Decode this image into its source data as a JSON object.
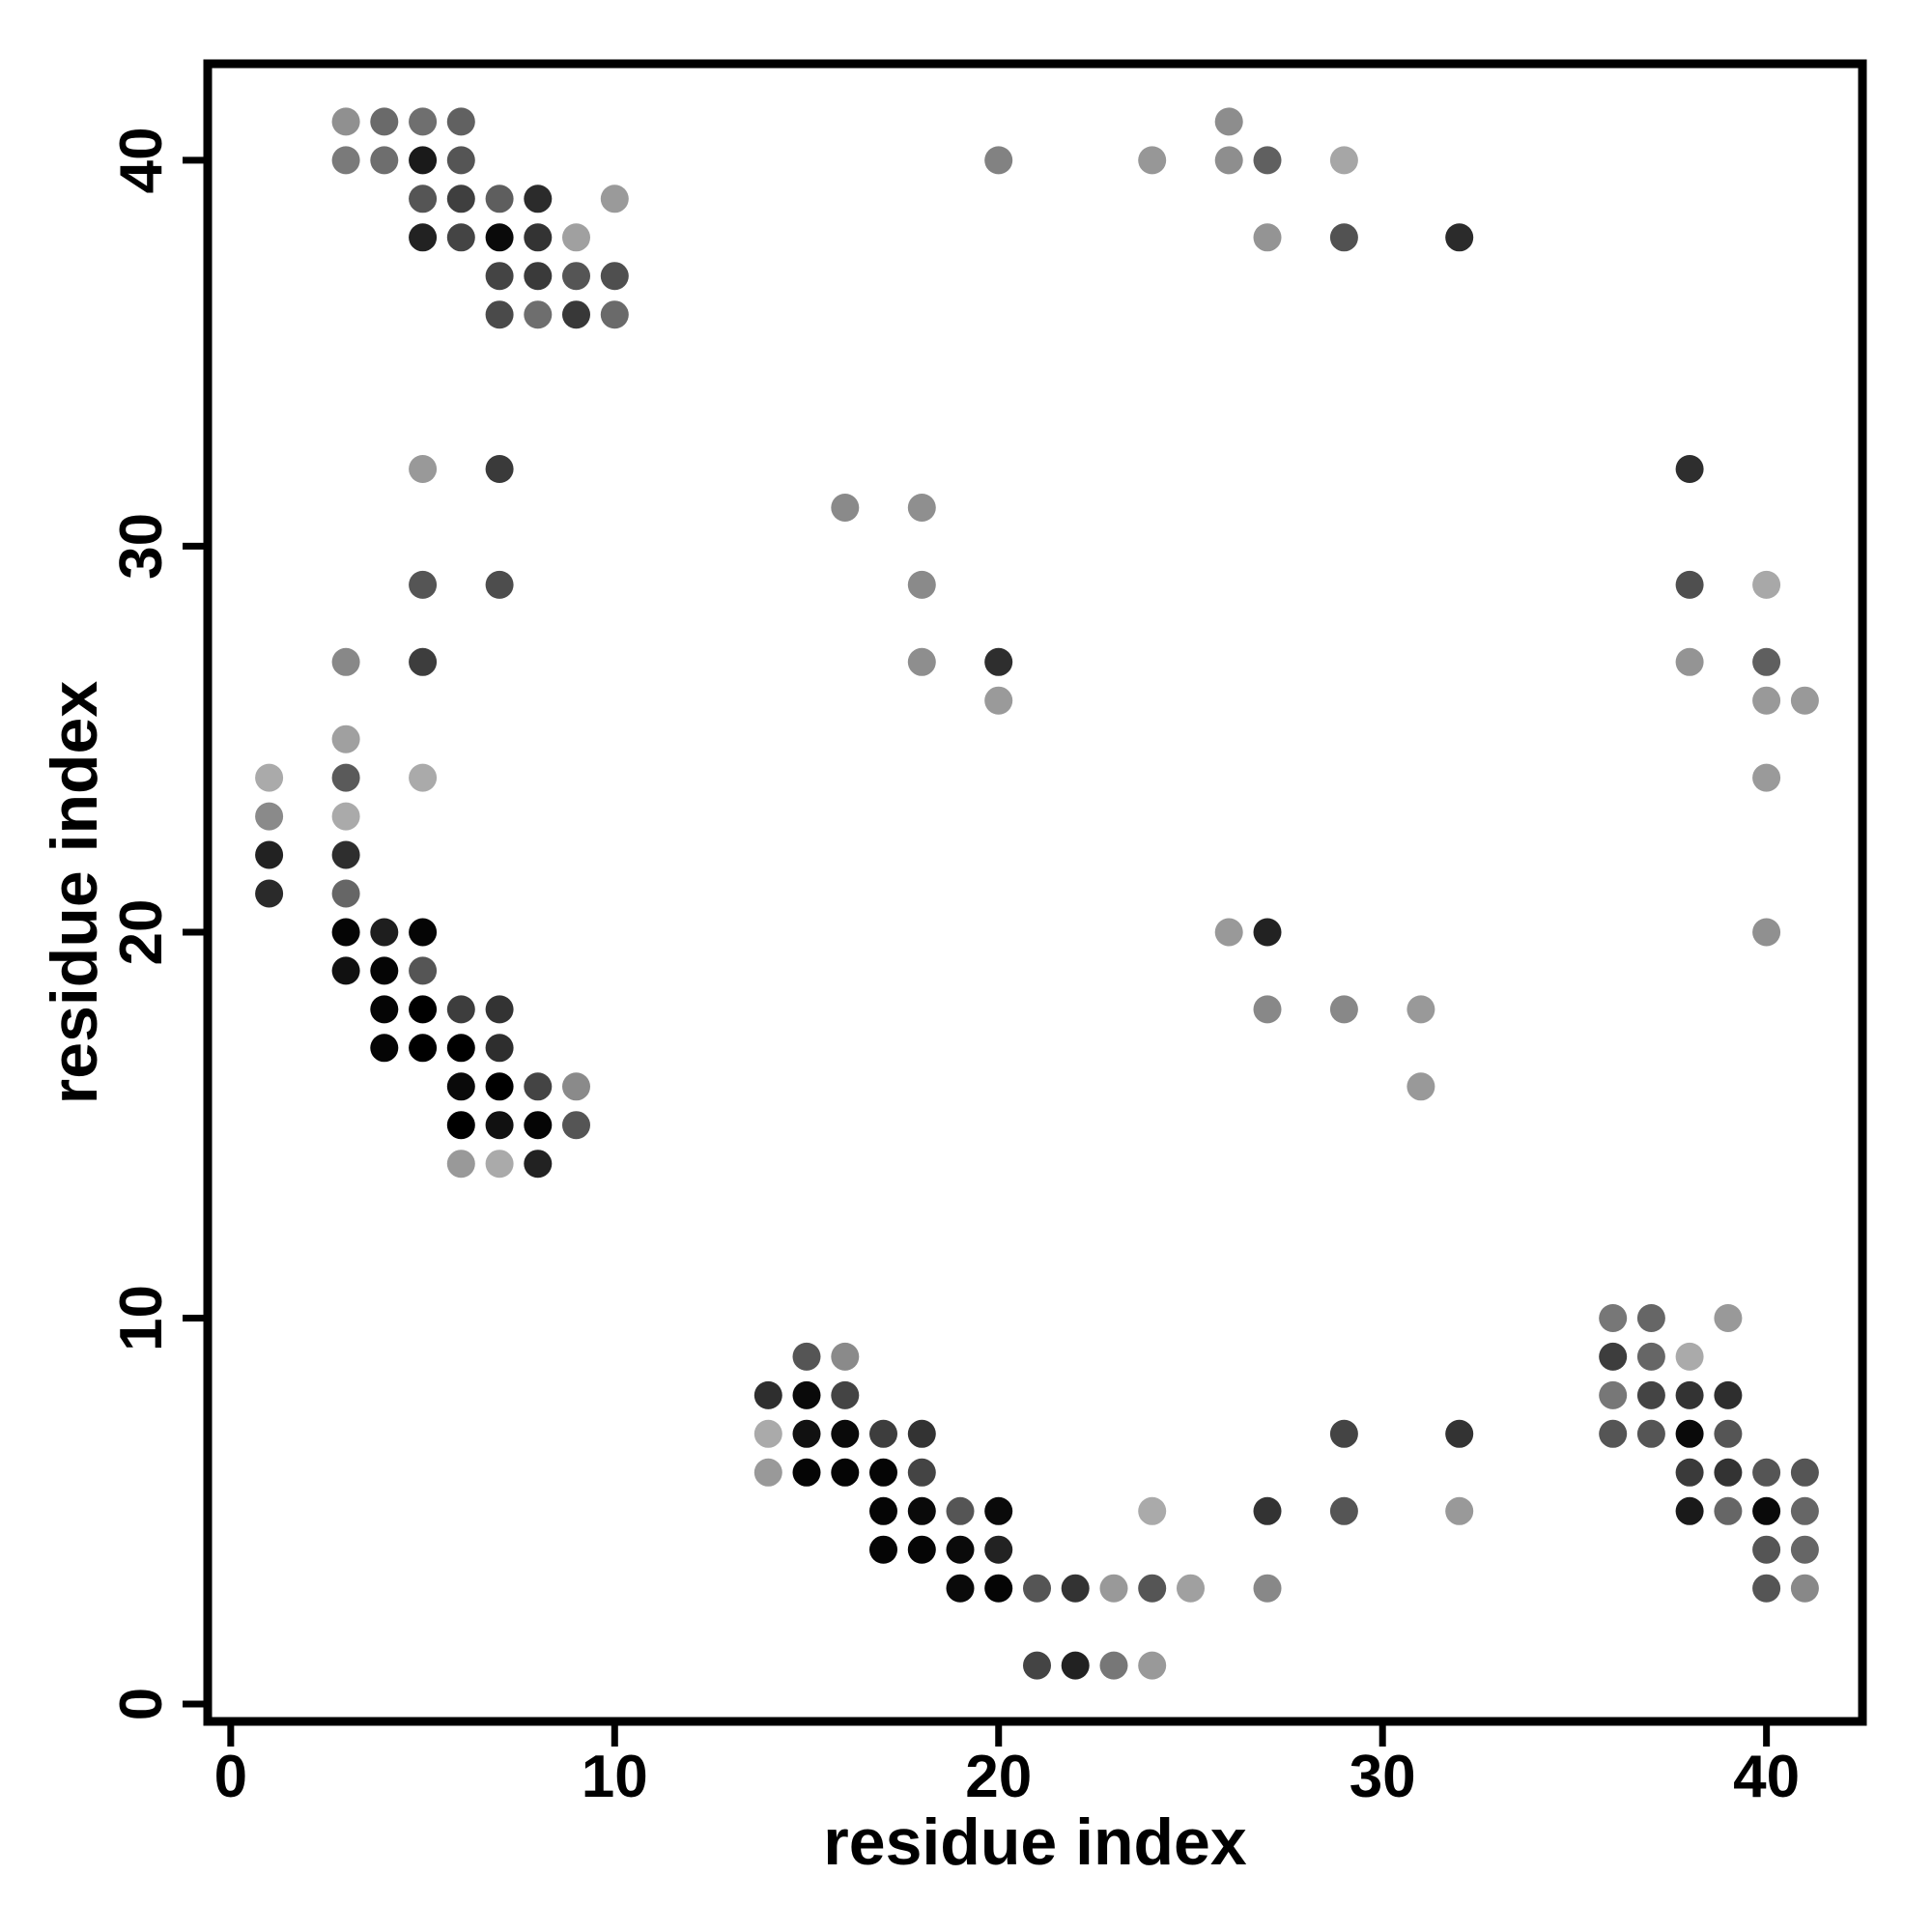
{
  "figure": {
    "background": "#ffffff",
    "axis_color": "#000000"
  },
  "chart_data": {
    "type": "scatter",
    "title": "",
    "xlabel": "residue index",
    "ylabel": "residue index",
    "xlim": [
      -0.6,
      42.5
    ],
    "ylim": [
      -0.45,
      42.5
    ],
    "xticks": [
      0,
      10,
      20,
      30,
      40
    ],
    "yticks": [
      0,
      10,
      20,
      30,
      40
    ],
    "grid": false,
    "legend": "none",
    "marker": "circle",
    "marker_radius_px": 14.5,
    "points": [
      [
        3,
        41,
        "#909090"
      ],
      [
        4,
        41,
        "#6a6a6a"
      ],
      [
        5,
        41,
        "#6f6f6f"
      ],
      [
        6,
        41,
        "#616161"
      ],
      [
        26,
        41,
        "#8d8d8d"
      ],
      [
        3,
        40,
        "#7a7a7a"
      ],
      [
        4,
        40,
        "#6e6e6e"
      ],
      [
        5,
        40,
        "#1a1a1a"
      ],
      [
        6,
        40,
        "#555555"
      ],
      [
        20,
        40,
        "#828282"
      ],
      [
        24,
        40,
        "#979797"
      ],
      [
        26,
        40,
        "#8e8e8e"
      ],
      [
        27,
        40,
        "#606060"
      ],
      [
        29,
        40,
        "#a6a6a6"
      ],
      [
        5,
        39,
        "#555555"
      ],
      [
        6,
        39,
        "#3f3f3f"
      ],
      [
        7,
        39,
        "#5e5e5e"
      ],
      [
        8,
        39,
        "#2b2b2b"
      ],
      [
        10,
        39,
        "#9a9a9a"
      ],
      [
        5,
        38,
        "#222222"
      ],
      [
        6,
        38,
        "#444444"
      ],
      [
        7,
        38,
        "#0a0a0a"
      ],
      [
        8,
        38,
        "#333333"
      ],
      [
        9,
        38,
        "#a0a0a0"
      ],
      [
        27,
        38,
        "#949494"
      ],
      [
        29,
        38,
        "#525252"
      ],
      [
        32,
        38,
        "#2b2b2b"
      ],
      [
        7,
        37,
        "#444444"
      ],
      [
        8,
        37,
        "#3a3a3a"
      ],
      [
        9,
        37,
        "#555555"
      ],
      [
        10,
        37,
        "#4f4f4f"
      ],
      [
        7,
        36,
        "#4a4a4a"
      ],
      [
        8,
        36,
        "#6e6e6e"
      ],
      [
        9,
        36,
        "#383838"
      ],
      [
        10,
        36,
        "#6a6a6a"
      ],
      [
        5,
        32,
        "#999999"
      ],
      [
        7,
        32,
        "#3a3a3a"
      ],
      [
        38,
        32,
        "#2e2e2e"
      ],
      [
        16,
        31,
        "#8a8a8a"
      ],
      [
        18,
        31,
        "#8f8f8f"
      ],
      [
        5,
        29,
        "#555555"
      ],
      [
        7,
        29,
        "#4d4d4d"
      ],
      [
        18,
        29,
        "#8a8a8a"
      ],
      [
        38,
        29,
        "#4f4f4f"
      ],
      [
        40,
        29,
        "#a8a8a8"
      ],
      [
        3,
        27,
        "#888888"
      ],
      [
        5,
        27,
        "#3d3d3d"
      ],
      [
        18,
        27,
        "#8e8e8e"
      ],
      [
        20,
        27,
        "#2e2e2e"
      ],
      [
        38,
        27,
        "#949494"
      ],
      [
        40,
        27,
        "#5f5f5f"
      ],
      [
        20,
        26,
        "#9a9a9a"
      ],
      [
        40,
        26,
        "#999999"
      ],
      [
        41,
        26,
        "#999999"
      ],
      [
        3,
        25,
        "#a0a0a0"
      ],
      [
        1,
        24,
        "#aaaaaa"
      ],
      [
        3,
        24,
        "#5a5a5a"
      ],
      [
        5,
        24,
        "#aaaaaa"
      ],
      [
        40,
        24,
        "#9a9a9a"
      ],
      [
        1,
        23,
        "#8a8a8a"
      ],
      [
        3,
        23,
        "#aaaaaa"
      ],
      [
        1,
        22,
        "#222222"
      ],
      [
        3,
        22,
        "#2e2e2e"
      ],
      [
        1,
        21,
        "#2a2a2a"
      ],
      [
        3,
        21,
        "#666666"
      ],
      [
        3,
        20,
        "#050505"
      ],
      [
        4,
        20,
        "#1e1e1e"
      ],
      [
        5,
        20,
        "#050505"
      ],
      [
        26,
        20,
        "#999999"
      ],
      [
        27,
        20,
        "#222222"
      ],
      [
        40,
        20,
        "#909090"
      ],
      [
        3,
        19,
        "#111111"
      ],
      [
        4,
        19,
        "#050505"
      ],
      [
        5,
        19,
        "#555555"
      ],
      [
        4,
        18,
        "#050505"
      ],
      [
        5,
        18,
        "#000000"
      ],
      [
        6,
        18,
        "#3d3d3d"
      ],
      [
        7,
        18,
        "#333333"
      ],
      [
        27,
        18,
        "#888888"
      ],
      [
        29,
        18,
        "#888888"
      ],
      [
        31,
        18,
        "#999999"
      ],
      [
        4,
        17,
        "#050505"
      ],
      [
        5,
        17,
        "#000000"
      ],
      [
        6,
        17,
        "#000000"
      ],
      [
        7,
        17,
        "#2e2e2e"
      ],
      [
        6,
        16,
        "#0a0a0a"
      ],
      [
        7,
        16,
        "#000000"
      ],
      [
        8,
        16,
        "#444444"
      ],
      [
        9,
        16,
        "#8a8a8a"
      ],
      [
        31,
        16,
        "#999999"
      ],
      [
        6,
        15,
        "#000000"
      ],
      [
        7,
        15,
        "#111111"
      ],
      [
        8,
        15,
        "#050505"
      ],
      [
        9,
        15,
        "#555555"
      ],
      [
        6,
        14,
        "#999999"
      ],
      [
        7,
        14,
        "#aaaaaa"
      ],
      [
        8,
        14,
        "#222222"
      ],
      [
        36,
        10,
        "#777777"
      ],
      [
        37,
        10,
        "#666666"
      ],
      [
        39,
        10,
        "#999999"
      ],
      [
        15,
        9,
        "#555555"
      ],
      [
        16,
        9,
        "#8a8a8a"
      ],
      [
        36,
        9,
        "#3d3d3d"
      ],
      [
        37,
        9,
        "#666666"
      ],
      [
        38,
        9,
        "#aaaaaa"
      ],
      [
        14,
        8,
        "#2e2e2e"
      ],
      [
        15,
        8,
        "#0a0a0a"
      ],
      [
        16,
        8,
        "#444444"
      ],
      [
        36,
        8,
        "#777777"
      ],
      [
        37,
        8,
        "#444444"
      ],
      [
        38,
        8,
        "#333333"
      ],
      [
        39,
        8,
        "#2e2e2e"
      ],
      [
        14,
        7,
        "#aaaaaa"
      ],
      [
        15,
        7,
        "#111111"
      ],
      [
        16,
        7,
        "#0a0a0a"
      ],
      [
        17,
        7,
        "#3d3d3d"
      ],
      [
        18,
        7,
        "#333333"
      ],
      [
        29,
        7,
        "#444444"
      ],
      [
        32,
        7,
        "#333333"
      ],
      [
        36,
        7,
        "#555555"
      ],
      [
        37,
        7,
        "#555555"
      ],
      [
        38,
        7,
        "#0a0a0a"
      ],
      [
        39,
        7,
        "#555555"
      ],
      [
        14,
        6,
        "#999999"
      ],
      [
        15,
        6,
        "#050505"
      ],
      [
        16,
        6,
        "#050505"
      ],
      [
        17,
        6,
        "#050505"
      ],
      [
        18,
        6,
        "#444444"
      ],
      [
        38,
        6,
        "#3a3a3a"
      ],
      [
        39,
        6,
        "#333333"
      ],
      [
        40,
        6,
        "#555555"
      ],
      [
        41,
        6,
        "#555555"
      ],
      [
        17,
        5,
        "#050505"
      ],
      [
        18,
        5,
        "#0a0a0a"
      ],
      [
        19,
        5,
        "#555555"
      ],
      [
        20,
        5,
        "#0a0a0a"
      ],
      [
        24,
        5,
        "#aaaaaa"
      ],
      [
        27,
        5,
        "#333333"
      ],
      [
        29,
        5,
        "#555555"
      ],
      [
        32,
        5,
        "#999999"
      ],
      [
        38,
        5,
        "#1a1a1a"
      ],
      [
        39,
        5,
        "#666666"
      ],
      [
        40,
        5,
        "#0a0a0a"
      ],
      [
        41,
        5,
        "#666666"
      ],
      [
        17,
        4,
        "#050505"
      ],
      [
        18,
        4,
        "#050505"
      ],
      [
        19,
        4,
        "#0a0a0a"
      ],
      [
        20,
        4,
        "#222222"
      ],
      [
        40,
        4,
        "#555555"
      ],
      [
        41,
        4,
        "#666666"
      ],
      [
        19,
        3,
        "#0a0a0a"
      ],
      [
        20,
        3,
        "#050505"
      ],
      [
        21,
        3,
        "#555555"
      ],
      [
        22,
        3,
        "#333333"
      ],
      [
        23,
        3,
        "#999999"
      ],
      [
        24,
        3,
        "#555555"
      ],
      [
        25,
        3,
        "#a0a0a0"
      ],
      [
        27,
        3,
        "#888888"
      ],
      [
        40,
        3,
        "#555555"
      ],
      [
        41,
        3,
        "#888888"
      ],
      [
        21,
        1,
        "#444444"
      ],
      [
        22,
        1,
        "#222222"
      ],
      [
        23,
        1,
        "#777777"
      ],
      [
        24,
        1,
        "#999999"
      ]
    ]
  }
}
